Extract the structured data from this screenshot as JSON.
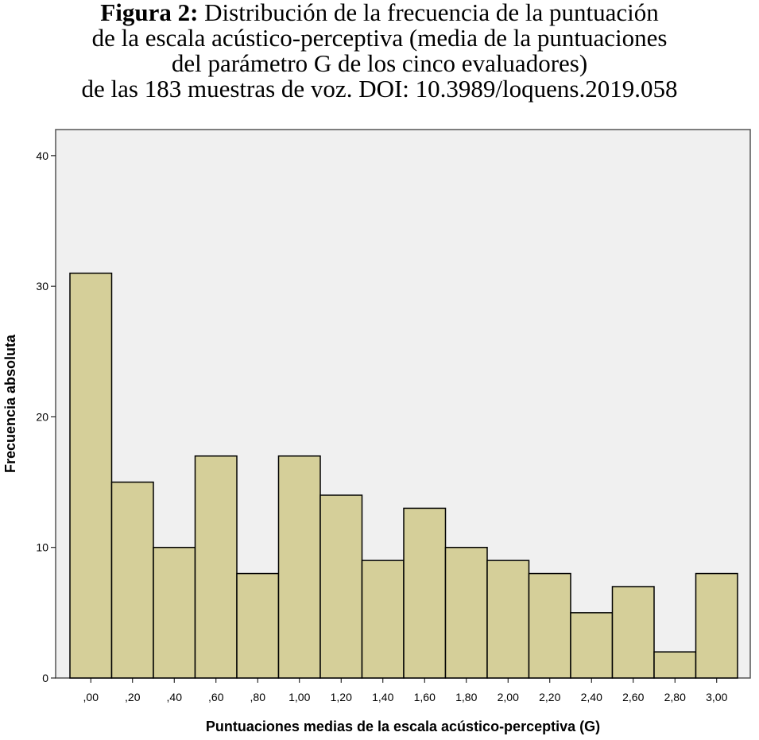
{
  "caption": {
    "label": "Figura 2:",
    "lines": [
      "Distribución de la frecuencia de la puntuación",
      "de la escala acústico-perceptiva (media de la puntuaciones",
      "del parámetro G de los cinco evaluadores)",
      "de las 183 muestras de voz. DOI: 10.3989/loquens.2019.058"
    ]
  },
  "chart_data": {
    "type": "bar",
    "title": "",
    "xlabel": "Puntuaciones medias de la escala acústico-perceptiva (G)",
    "ylabel": "Frecuencia absoluta",
    "categories": [
      ",00",
      ",20",
      ",40",
      ",60",
      ",80",
      "1,00",
      "1,20",
      "1,40",
      "1,60",
      "1,80",
      "2,00",
      "2,20",
      "2,40",
      "2,60",
      "2,80",
      "3,00"
    ],
    "values": [
      31,
      15,
      10,
      17,
      8,
      17,
      14,
      9,
      13,
      10,
      9,
      8,
      5,
      7,
      2,
      8
    ],
    "ylim": [
      0,
      42
    ],
    "yticks": [
      "0",
      "10",
      "20",
      "30",
      "40"
    ],
    "ytick_values": [
      0,
      10,
      20,
      30,
      40
    ],
    "grid": false,
    "colors": {
      "plot_background": "#f0f0f0",
      "bar_fill": "#d5cf99",
      "bar_stroke": "#000000",
      "frame": "#555555"
    }
  }
}
